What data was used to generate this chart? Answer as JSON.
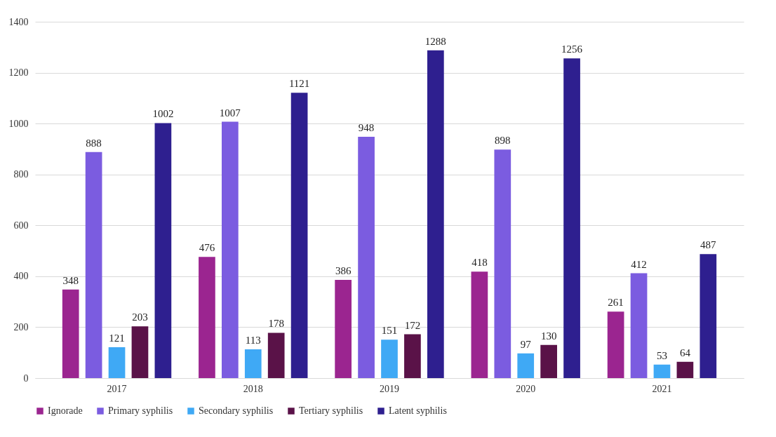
{
  "chart_data": {
    "type": "bar",
    "categories": [
      "2017",
      "2018",
      "2019",
      "2020",
      "2021"
    ],
    "series": [
      {
        "name": "Ignorade",
        "color": "#9b2590",
        "values": [
          348,
          476,
          386,
          418,
          261
        ]
      },
      {
        "name": "Primary syphilis",
        "color": "#7b5ce0",
        "values": [
          888,
          1007,
          948,
          898,
          412
        ]
      },
      {
        "name": "Secondary syphilis",
        "color": "#3fa9f5",
        "values": [
          121,
          113,
          151,
          97,
          53
        ]
      },
      {
        "name": "Tertiary syphilis",
        "color": "#5a1248",
        "values": [
          203,
          178,
          172,
          130,
          64
        ]
      },
      {
        "name": "Latent syphilis",
        "color": "#2e1f8f",
        "values": [
          1002,
          1121,
          1288,
          1256,
          487
        ]
      }
    ],
    "ylim": [
      0,
      1400
    ],
    "yticks": [
      0,
      200,
      400,
      600,
      800,
      1000,
      1200,
      1400
    ],
    "grid": "y",
    "legend": "bottom",
    "data_labels": true
  }
}
